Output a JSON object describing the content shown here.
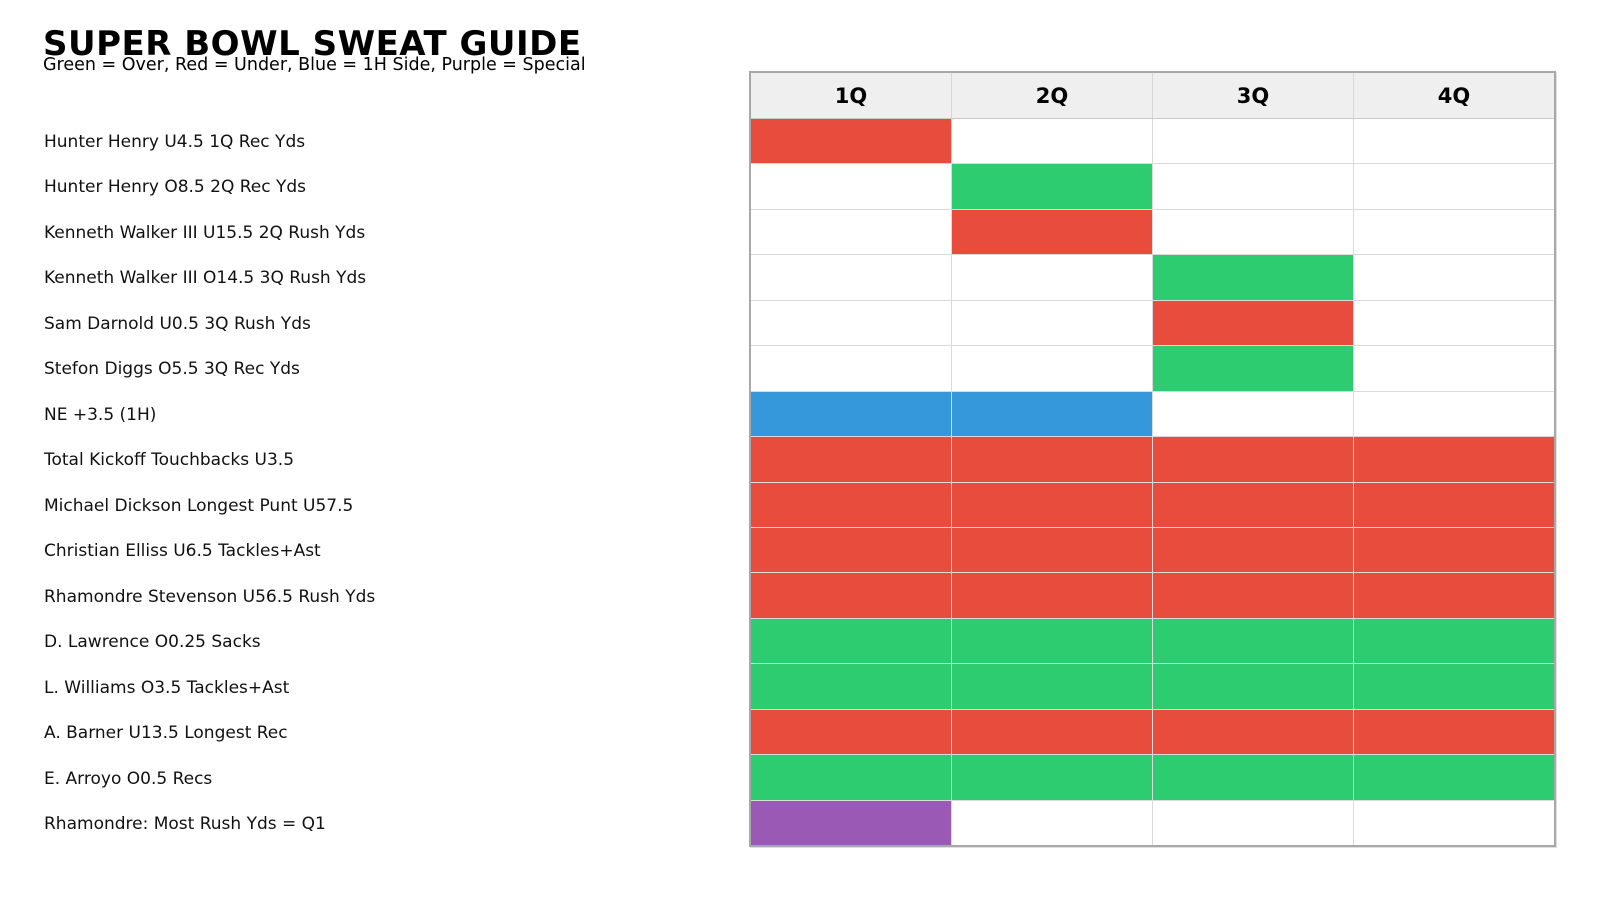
{
  "page": {
    "title": "SUPER BOWL SWEAT GUIDE",
    "subtitle": "Green = Over, Red = Under, Blue = 1H Side, Purple = Special"
  },
  "colors": {
    "over_green": "#2ecc71",
    "under_red": "#e74c3c",
    "first_half_blue": "#3498db",
    "special_purple": "#9b59b6",
    "empty_cell": "#ffffff",
    "header_bg": "#efefef",
    "grid_line": "#dadada",
    "outer_border": "#a8a8a8"
  },
  "chart_data": {
    "type": "heatmap",
    "title": "SUPER BOWL SWEAT GUIDE",
    "subtitle": "Green = Over, Red = Under, Blue = 1H Side, Purple = Special",
    "legend": {
      "green": "Over",
      "red": "Under",
      "blue": "1H Side",
      "purple": "Special"
    },
    "columns": [
      "1Q",
      "2Q",
      "3Q",
      "4Q"
    ],
    "rows": [
      {
        "label": "Hunter Henry U4.5 1Q Rec Yds",
        "cells": [
          "red",
          "none",
          "none",
          "none"
        ]
      },
      {
        "label": "Hunter Henry O8.5 2Q Rec Yds",
        "cells": [
          "none",
          "green",
          "none",
          "none"
        ]
      },
      {
        "label": "Kenneth Walker III U15.5 2Q Rush Yds",
        "cells": [
          "none",
          "red",
          "none",
          "none"
        ]
      },
      {
        "label": "Kenneth Walker III O14.5 3Q Rush Yds",
        "cells": [
          "none",
          "none",
          "green",
          "none"
        ]
      },
      {
        "label": "Sam Darnold U0.5 3Q Rush Yds",
        "cells": [
          "none",
          "none",
          "red",
          "none"
        ]
      },
      {
        "label": "Stefon Diggs O5.5 3Q Rec Yds",
        "cells": [
          "none",
          "none",
          "green",
          "none"
        ]
      },
      {
        "label": "NE +3.5 (1H)",
        "cells": [
          "blue",
          "blue",
          "none",
          "none"
        ]
      },
      {
        "label": "Total Kickoff Touchbacks U3.5",
        "cells": [
          "red",
          "red",
          "red",
          "red"
        ]
      },
      {
        "label": "Michael Dickson Longest Punt U57.5",
        "cells": [
          "red",
          "red",
          "red",
          "red"
        ]
      },
      {
        "label": "Christian Elliss U6.5 Tackles+Ast",
        "cells": [
          "red",
          "red",
          "red",
          "red"
        ]
      },
      {
        "label": "Rhamondre Stevenson U56.5 Rush Yds",
        "cells": [
          "red",
          "red",
          "red",
          "red"
        ]
      },
      {
        "label": "D. Lawrence O0.25 Sacks",
        "cells": [
          "green",
          "green",
          "green",
          "green"
        ]
      },
      {
        "label": "L. Williams O3.5 Tackles+Ast",
        "cells": [
          "green",
          "green",
          "green",
          "green"
        ]
      },
      {
        "label": "A. Barner U13.5 Longest Rec",
        "cells": [
          "red",
          "red",
          "red",
          "red"
        ]
      },
      {
        "label": "E. Arroyo O0.5 Recs",
        "cells": [
          "green",
          "green",
          "green",
          "green"
        ]
      },
      {
        "label": "Rhamondre: Most Rush Yds = Q1",
        "cells": [
          "purple",
          "none",
          "none",
          "none"
        ]
      }
    ]
  }
}
